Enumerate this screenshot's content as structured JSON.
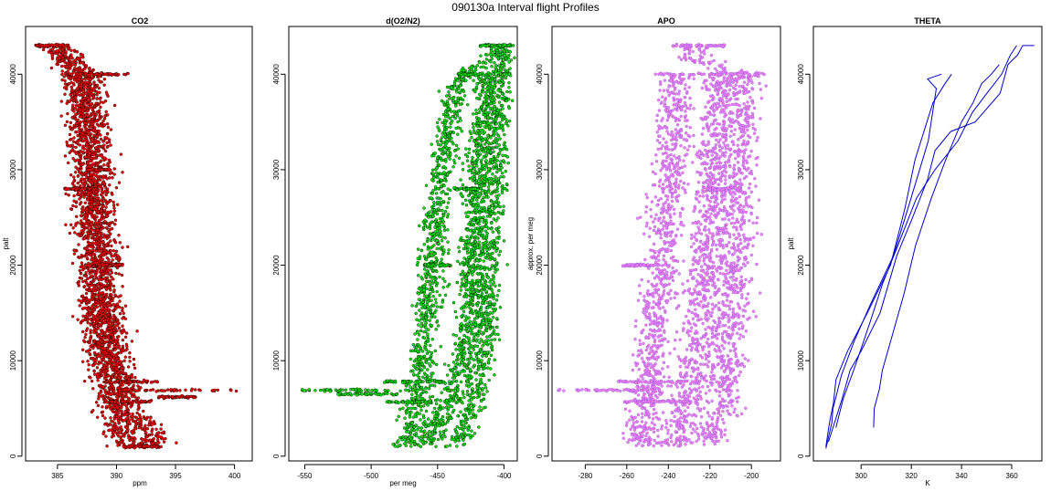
{
  "figure": {
    "title": "090130a   Interval flight Profiles"
  },
  "chart_data": [
    {
      "type": "scatter",
      "title": "CO2",
      "xlabel": "ppm",
      "ylabel": "palt",
      "xlim": [
        382.3,
        401.5
      ],
      "ylim": [
        -500,
        45000
      ],
      "xticks": [
        385,
        390,
        395,
        400
      ],
      "yticks": [
        0,
        10000,
        20000,
        30000,
        40000
      ],
      "fill_color": "#ff0000",
      "edge_color": "#000000",
      "profiles": [
        {
          "palt": [
            1000,
            3000,
            5000,
            7000,
            9000,
            11000,
            13000,
            15000,
            17000,
            20000,
            23000,
            26000,
            28000,
            30000,
            33000,
            36000,
            39000,
            40000,
            41500,
            43000
          ],
          "x": [
            392.0,
            391.0,
            390.3,
            389.8,
            389.4,
            389.2,
            389.0,
            388.8,
            388.6,
            388.5,
            388.3,
            388.2,
            388.0,
            387.9,
            387.8,
            387.6,
            387.3,
            387.0,
            385.8,
            384.5
          ]
        },
        {
          "palt": [
            1000,
            3000,
            5000,
            7000,
            9000,
            11000,
            13000,
            15000,
            17000,
            20000,
            23000,
            26000,
            28000,
            30000,
            33000,
            36000,
            39000,
            40000,
            41500,
            43000
          ],
          "x": [
            393.5,
            392.5,
            391.3,
            390.6,
            390.1,
            389.7,
            389.5,
            389.3,
            389.1,
            388.9,
            388.7,
            388.6,
            388.4,
            388.3,
            388.2,
            388.0,
            387.8,
            387.5,
            386.2,
            384.8
          ]
        },
        {
          "palt": [
            1000,
            3000,
            5000,
            7000,
            9000,
            11000,
            13000,
            15000,
            17000,
            20000,
            23000,
            26000,
            28000,
            30000,
            33000,
            36000,
            39000,
            40000
          ],
          "x": [
            390.8,
            390.0,
            389.6,
            389.2,
            388.9,
            388.7,
            388.5,
            388.3,
            388.1,
            388.0,
            387.8,
            387.7,
            387.5,
            387.4,
            387.3,
            387.1,
            386.9,
            386.6
          ]
        }
      ],
      "spread": 1.4,
      "level_legs": [
        {
          "palt": 43000,
          "x_from": 382.9,
          "x_to": 386.0
        },
        {
          "palt": 40000,
          "x_from": 385.5,
          "x_to": 391.0
        },
        {
          "palt": 30000,
          "x_from": 387.5,
          "x_to": 389.5
        },
        {
          "palt": 28000,
          "x_from": 385.6,
          "x_to": 388.2
        },
        {
          "palt": 20000,
          "x_from": 388.0,
          "x_to": 390.5
        },
        {
          "palt": 7800,
          "x_from": 389.0,
          "x_to": 393.5
        },
        {
          "palt": 6900,
          "x_from": 389.5,
          "x_to": 400.5
        },
        {
          "palt": 6200,
          "x_from": 393.5,
          "x_to": 396.8
        },
        {
          "palt": 5700,
          "x_from": 389.0,
          "x_to": 393.0
        },
        {
          "palt": 1000,
          "x_from": 390.5,
          "x_to": 393.8
        }
      ]
    },
    {
      "type": "scatter",
      "title": "d(O2/N2)",
      "xlabel": "per meg",
      "ylabel": "",
      "xlim": [
        -562,
        -390
      ],
      "ylim": [
        -500,
        45000
      ],
      "xticks": [
        -550,
        -500,
        -450,
        -400
      ],
      "yticks": [
        0,
        10000,
        20000,
        30000,
        40000
      ],
      "fill_color": "#00ee00",
      "edge_color": "#000000",
      "profiles": [
        {
          "palt": [
            1000,
            3000,
            5000,
            7000,
            9000,
            11000,
            13000,
            15000,
            17000,
            20000,
            23000,
            26000,
            28000,
            30000,
            33000,
            36000,
            39000,
            40000,
            41500,
            43000
          ],
          "x": [
            -475,
            -470,
            -466,
            -464,
            -462,
            -460,
            -459,
            -457,
            -456,
            -454,
            -452,
            -450,
            -448,
            -446,
            -443,
            -440,
            -436,
            -432,
            -412,
            -402
          ]
        },
        {
          "palt": [
            1000,
            3000,
            5000,
            7000,
            9000,
            11000,
            13000,
            15000,
            17000,
            20000,
            23000,
            26000,
            28000,
            30000,
            33000,
            36000,
            39000,
            40000
          ],
          "x": [
            -460,
            -452,
            -445,
            -438,
            -433,
            -430,
            -428,
            -426,
            -425,
            -424,
            -423,
            -422,
            -421,
            -420,
            -418,
            -416,
            -414,
            -412
          ]
        },
        {
          "palt": [
            1000,
            3000,
            5000,
            7000,
            9000,
            11000,
            13000,
            15000,
            17000,
            20000,
            23000,
            26000,
            28000,
            30000,
            33000,
            36000,
            39000,
            40000,
            41500,
            43000
          ],
          "x": [
            -438,
            -430,
            -424,
            -420,
            -418,
            -416,
            -414,
            -413,
            -412,
            -411,
            -410,
            -409,
            -408,
            -407,
            -406,
            -405,
            -404,
            -403,
            -402,
            -400
          ]
        }
      ],
      "spread": 9,
      "level_legs": [
        {
          "palt": 43000,
          "x_from": -418,
          "x_to": -395
        },
        {
          "palt": 40000,
          "x_from": -435,
          "x_to": -394
        },
        {
          "palt": 28000,
          "x_from": -438,
          "x_to": -418
        },
        {
          "palt": 20000,
          "x_from": -460,
          "x_to": -440
        },
        {
          "palt": 7800,
          "x_from": -490,
          "x_to": -440
        },
        {
          "palt": 6900,
          "x_from": -552,
          "x_to": -465
        },
        {
          "palt": 6500,
          "x_from": -525,
          "x_to": -480
        },
        {
          "palt": 5700,
          "x_from": -490,
          "x_to": -455
        }
      ]
    },
    {
      "type": "scatter",
      "title": "APO",
      "xlabel": "",
      "ylabel": "approx. per meg",
      "xlim": [
        -296,
        -186
      ],
      "ylim": [
        -500,
        45000
      ],
      "xticks": [
        -280,
        -260,
        -240,
        -220,
        -200
      ],
      "yticks": [
        0,
        10000,
        20000,
        30000,
        40000
      ],
      "fill_color": "#ee82ee",
      "edge_color": "#9a52e0",
      "profiles": [
        {
          "palt": [
            1000,
            3000,
            5000,
            7000,
            9000,
            11000,
            13000,
            15000,
            17000,
            20000,
            23000,
            26000,
            28000,
            30000,
            33000,
            36000,
            39000,
            40000
          ],
          "x": [
            -255,
            -252,
            -250,
            -249,
            -248,
            -247,
            -246,
            -245,
            -244,
            -243,
            -242,
            -241,
            -240,
            -239,
            -238,
            -237,
            -236,
            -235
          ]
        },
        {
          "palt": [
            1000,
            3000,
            5000,
            7000,
            9000,
            11000,
            13000,
            15000,
            17000,
            20000,
            23000,
            26000,
            28000,
            30000,
            33000,
            36000,
            39000,
            40000
          ],
          "x": [
            -238,
            -234,
            -231,
            -229,
            -227,
            -226,
            -225,
            -224,
            -223,
            -222,
            -221,
            -220,
            -219,
            -218,
            -217,
            -216,
            -215,
            -214
          ]
        },
        {
          "palt": [
            1000,
            3000,
            5000,
            7000,
            9000,
            11000,
            13000,
            15000,
            17000,
            20000,
            23000,
            26000,
            28000,
            30000,
            33000,
            36000,
            39000,
            40000,
            41500,
            43000
          ],
          "x": [
            -222,
            -218,
            -215,
            -213,
            -212,
            -211,
            -210,
            -209,
            -208,
            -208,
            -207,
            -207,
            -206,
            -206,
            -205,
            -205,
            -204,
            -204,
            -228,
            -226
          ]
        }
      ],
      "spread": 8,
      "level_legs": [
        {
          "palt": 43000,
          "x_from": -238,
          "x_to": -212
        },
        {
          "palt": 40000,
          "x_from": -247,
          "x_to": -193
        },
        {
          "palt": 28000,
          "x_from": -222,
          "x_to": -205
        },
        {
          "palt": 20000,
          "x_from": -262,
          "x_to": -245
        },
        {
          "palt": 7800,
          "x_from": -265,
          "x_to": -225
        },
        {
          "palt": 6900,
          "x_from": -293,
          "x_to": -250
        },
        {
          "palt": 5700,
          "x_from": -262,
          "x_to": -230
        }
      ]
    },
    {
      "type": "line",
      "title": "THETA",
      "xlabel": "K",
      "ylabel": "palt",
      "xlim": [
        281,
        372
      ],
      "ylim": [
        -500,
        45000
      ],
      "xticks": [
        300,
        320,
        340,
        360
      ],
      "yticks": [
        0,
        10000,
        20000,
        30000,
        40000
      ],
      "line_color": "#0000cd",
      "series": [
        {
          "x": [
            286,
            287,
            288,
            289,
            290,
            295,
            303,
            312,
            318,
            322,
            328,
            333,
            336
          ],
          "palt": [
            1000,
            3000,
            4000,
            5500,
            8000,
            11000,
            15000,
            20000,
            26000,
            31000,
            37000,
            39000,
            40000
          ]
        },
        {
          "x": [
            286,
            288,
            289,
            290,
            292,
            297,
            304,
            313,
            320,
            327,
            330,
            327,
            332
          ],
          "palt": [
            800,
            3500,
            5000,
            6000,
            8500,
            12000,
            16000,
            21000,
            27000,
            33000,
            38500,
            39500,
            40000
          ]
        },
        {
          "x": [
            287,
            290,
            292,
            296,
            300,
            307,
            314,
            320,
            326,
            330,
            336,
            345,
            355,
            358,
            362,
            365,
            369
          ],
          "palt": [
            1500,
            4000,
            6000,
            9000,
            11000,
            15000,
            21000,
            25000,
            29000,
            32000,
            34000,
            35000,
            38000,
            41000,
            42000,
            43000,
            43000
          ]
        },
        {
          "x": [
            290,
            293,
            297,
            300,
            304,
            309,
            315,
            322,
            330,
            338,
            344,
            350,
            356,
            360,
            362
          ],
          "palt": [
            3000,
            6000,
            9000,
            11000,
            14000,
            18000,
            22000,
            27000,
            30000,
            33000,
            36000,
            38000,
            40000,
            42000,
            43000
          ]
        },
        {
          "x": [
            305,
            305,
            307,
            309,
            312,
            317,
            322,
            328,
            334,
            340,
            344,
            348,
            352,
            355
          ],
          "palt": [
            3000,
            5000,
            7000,
            9000,
            12000,
            17000,
            22000,
            27000,
            31000,
            35000,
            37000,
            39000,
            40000,
            41000
          ]
        }
      ]
    }
  ]
}
